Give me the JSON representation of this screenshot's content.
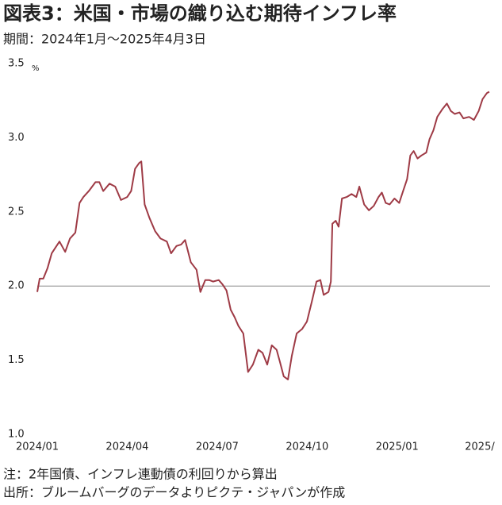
{
  "chart_data": {
    "type": "line",
    "title": "図表3：米国・市場の織り込む期待インフレ率",
    "subtitle": "期間：2024年1月～2025年4月3日",
    "y_unit": "%",
    "notes": [
      "注：2年国債、インフレ連動債の利回りから算出",
      "出所：ブルームバーグのデータよりピクテ・ジャパンが作成"
    ],
    "x": [
      0,
      0.08,
      0.2,
      0.34,
      0.48,
      0.61,
      0.74,
      0.93,
      1.09,
      1.27,
      1.41,
      1.54,
      1.72,
      1.94,
      2.07,
      2.2,
      2.41,
      2.6,
      2.79,
      3.0,
      3.13,
      3.26,
      3.4,
      3.47,
      3.58,
      3.74,
      3.93,
      4.11,
      4.32,
      4.46,
      4.64,
      4.8,
      4.93,
      5.12,
      5.31,
      5.44,
      5.6,
      5.73,
      5.86,
      6.05,
      6.18,
      6.31,
      6.45,
      6.58,
      6.71,
      6.87,
      7.03,
      7.19,
      7.37,
      7.51,
      7.67,
      7.82,
      7.98,
      8.09,
      8.22,
      8.36,
      8.49,
      8.65,
      8.83,
      8.99,
      9.15,
      9.31,
      9.44,
      9.55,
      9.71,
      9.79,
      9.84,
      9.95,
      10.05,
      10.16,
      10.32,
      10.48,
      10.64,
      10.74,
      10.9,
      11.06,
      11.22,
      11.38,
      11.49,
      11.62,
      11.75,
      11.91,
      12.07,
      12.2,
      12.33,
      12.44,
      12.55,
      12.68,
      12.81,
      12.97,
      13.08,
      13.21,
      13.34,
      13.5,
      13.66,
      13.79,
      13.92,
      14.08,
      14.21,
      14.4,
      14.56,
      14.72,
      14.85,
      14.99,
      15.07
    ],
    "series": [
      {
        "name": "期待インフレ率",
        "color": "#9e3a45",
        "values": [
          1.96,
          2.05,
          2.05,
          2.12,
          2.22,
          2.26,
          2.3,
          2.23,
          2.32,
          2.36,
          2.56,
          2.6,
          2.64,
          2.7,
          2.7,
          2.64,
          2.69,
          2.67,
          2.58,
          2.6,
          2.64,
          2.79,
          2.83,
          2.84,
          2.55,
          2.46,
          2.37,
          2.32,
          2.3,
          2.22,
          2.27,
          2.28,
          2.31,
          2.16,
          2.11,
          1.96,
          2.04,
          2.04,
          2.03,
          2.04,
          2.01,
          1.97,
          1.84,
          1.79,
          1.73,
          1.68,
          1.42,
          1.47,
          1.57,
          1.55,
          1.47,
          1.6,
          1.57,
          1.49,
          1.39,
          1.37,
          1.53,
          1.68,
          1.71,
          1.76,
          1.89,
          2.03,
          2.04,
          1.94,
          1.96,
          2.03,
          2.42,
          2.44,
          2.4,
          2.59,
          2.6,
          2.62,
          2.6,
          2.67,
          2.55,
          2.51,
          2.54,
          2.6,
          2.63,
          2.56,
          2.55,
          2.59,
          2.56,
          2.64,
          2.72,
          2.88,
          2.91,
          2.86,
          2.88,
          2.9,
          2.99,
          3.05,
          3.14,
          3.19,
          3.23,
          3.18,
          3.16,
          3.17,
          3.13,
          3.14,
          3.12,
          3.18,
          3.26,
          3.3,
          3.31
        ]
      }
    ],
    "xlim": [
      0,
      15.1
    ],
    "xticks": [
      {
        "value": 0,
        "label": "2024/01"
      },
      {
        "value": 3,
        "label": "2024/04"
      },
      {
        "value": 6,
        "label": "2024/07"
      },
      {
        "value": 9,
        "label": "2024/10"
      },
      {
        "value": 12,
        "label": "2025/01"
      },
      {
        "value": 15,
        "label": "2025/"
      }
    ],
    "ylim": [
      1,
      3.5
    ],
    "yticks": [
      {
        "value": 1,
        "label": "1.0"
      },
      1.5,
      {
        "value": 2,
        "label": "2.0"
      },
      2.5,
      {
        "value": 3,
        "label": "3.0"
      },
      3.5
    ],
    "reference_line": 2
  }
}
